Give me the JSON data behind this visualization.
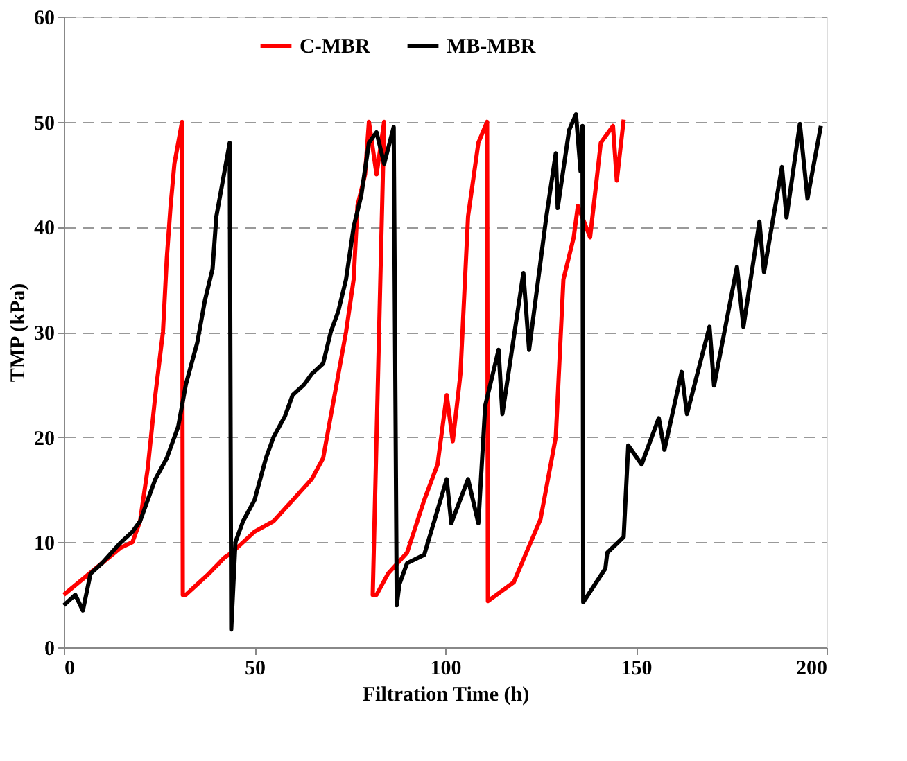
{
  "chart_data": {
    "type": "line",
    "xlabel": "Filtration Time (h)",
    "ylabel": "TMP (kPa)",
    "xlim": [
      0,
      200
    ],
    "xticks": [
      0,
      50,
      100,
      150,
      200
    ],
    "ylim": [
      0,
      60
    ],
    "yticks": [
      0,
      10,
      20,
      30,
      40,
      50,
      60
    ],
    "grid": "y",
    "legend": "top",
    "marker": "none",
    "line_style": "solid",
    "series": [
      {
        "name": "C-MBR",
        "color": "#ff0000",
        "x": [
          0,
          5,
          10,
          15,
          18,
          20,
          22,
          24,
          26,
          27,
          28,
          29,
          30,
          31,
          31.2,
          32,
          35,
          38,
          42,
          44,
          47,
          50,
          55,
          60,
          65,
          68,
          70,
          72,
          74,
          76,
          77,
          79,
          80,
          82,
          84,
          81,
          82,
          85,
          90,
          94.5,
          98,
          100.4,
          102,
          104,
          106,
          108.7,
          111,
          111.2,
          113.5,
          118,
          125,
          129,
          131,
          133.7,
          134.8,
          138,
          140.8,
          144,
          145,
          146.8
        ],
        "values": [
          5,
          6.5,
          8,
          9.5,
          10,
          12,
          17,
          24,
          30,
          37,
          42,
          46,
          48,
          50,
          5,
          5,
          6,
          7,
          8.5,
          9,
          10,
          11,
          12,
          14,
          16,
          18,
          22,
          26,
          30,
          35,
          42,
          45,
          50,
          45,
          50,
          5,
          5,
          7,
          9,
          14,
          17.4,
          24,
          19.6,
          26,
          41,
          48,
          50,
          4.4,
          5,
          6.2,
          12.2,
          20,
          35,
          39,
          42,
          39,
          48,
          49.6,
          44.4,
          50.2
        ]
      },
      {
        "name": "MB-MBR",
        "color": "#000000",
        "x": [
          0,
          3,
          5,
          7,
          10,
          15,
          18,
          20,
          24,
          27,
          30,
          32,
          35,
          37,
          39,
          40,
          42,
          43.5,
          43.9,
          45,
          47,
          50,
          53,
          55,
          58,
          60,
          63,
          65,
          68,
          70,
          72,
          74,
          76,
          78,
          80,
          82,
          84,
          86.5,
          87.3,
          88,
          90,
          94.5,
          100.4,
          101.6,
          106,
          108.7,
          110.5,
          114,
          115,
          120.5,
          122,
          126.5,
          129,
          129.5,
          132.5,
          134.3,
          135.5,
          136,
          136.2,
          142,
          142.5,
          146.8,
          148,
          151.5,
          156,
          157.5,
          162,
          163.4,
          169.3,
          170.5,
          176.5,
          178.2,
          182.4,
          183.6,
          188.3,
          189.5,
          193,
          195,
          198.5
        ],
        "values": [
          4,
          5,
          3.5,
          7,
          8,
          10,
          11,
          12,
          16,
          18,
          21,
          25,
          29,
          33,
          36,
          41,
          45,
          48,
          1.7,
          10,
          12,
          14,
          18,
          20,
          22,
          24,
          25,
          26,
          27,
          30,
          32,
          35,
          40,
          43,
          48,
          49,
          46,
          49.5,
          4,
          6,
          8,
          8.8,
          16,
          11.8,
          16,
          11.8,
          23,
          28.3,
          22.2,
          35.6,
          28.3,
          40.9,
          47,
          41.8,
          49.2,
          50.7,
          45.3,
          49.6,
          4.3,
          7.5,
          9,
          10.5,
          19.2,
          17.4,
          21.8,
          18.8,
          26.2,
          22.2,
          30.5,
          24.9,
          36.2,
          30.5,
          40.5,
          35.7,
          45.7,
          40.9,
          49.8,
          42.7,
          49.6
        ]
      }
    ]
  }
}
